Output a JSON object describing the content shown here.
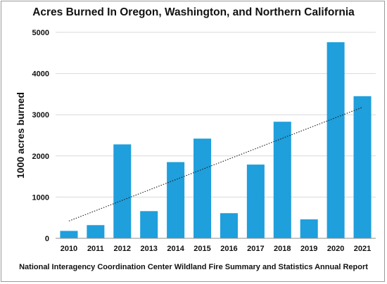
{
  "chart_data": {
    "type": "bar",
    "title": "Acres Burned In Oregon, Washington, and Northern California",
    "footer": "National Interagency Coordination Center Wildland Fire Summary and Statistics Annual Report",
    "xlabel": "",
    "ylabel": "1000 acres burned",
    "categories": [
      "2010",
      "2011",
      "2012",
      "2013",
      "2014",
      "2015",
      "2016",
      "2017",
      "2018",
      "2019",
      "2020",
      "2021"
    ],
    "values": [
      180,
      320,
      2280,
      660,
      1850,
      2420,
      610,
      1790,
      2830,
      460,
      4760,
      3450
    ],
    "ylim": [
      0,
      5000
    ],
    "yticks": [
      0,
      1000,
      2000,
      3000,
      4000,
      5000
    ],
    "grid": true,
    "legend": "none",
    "trendline": {
      "style": "dotted",
      "type": "linear",
      "start": {
        "x": "2010",
        "y": 420
      },
      "end": {
        "x": "2021",
        "y": 3180
      }
    },
    "colors": {
      "bar": "#1f9fdc",
      "grid": "#d9d9d9",
      "axis": "#8c8c8c",
      "trendline": "#1a1a1a"
    }
  }
}
